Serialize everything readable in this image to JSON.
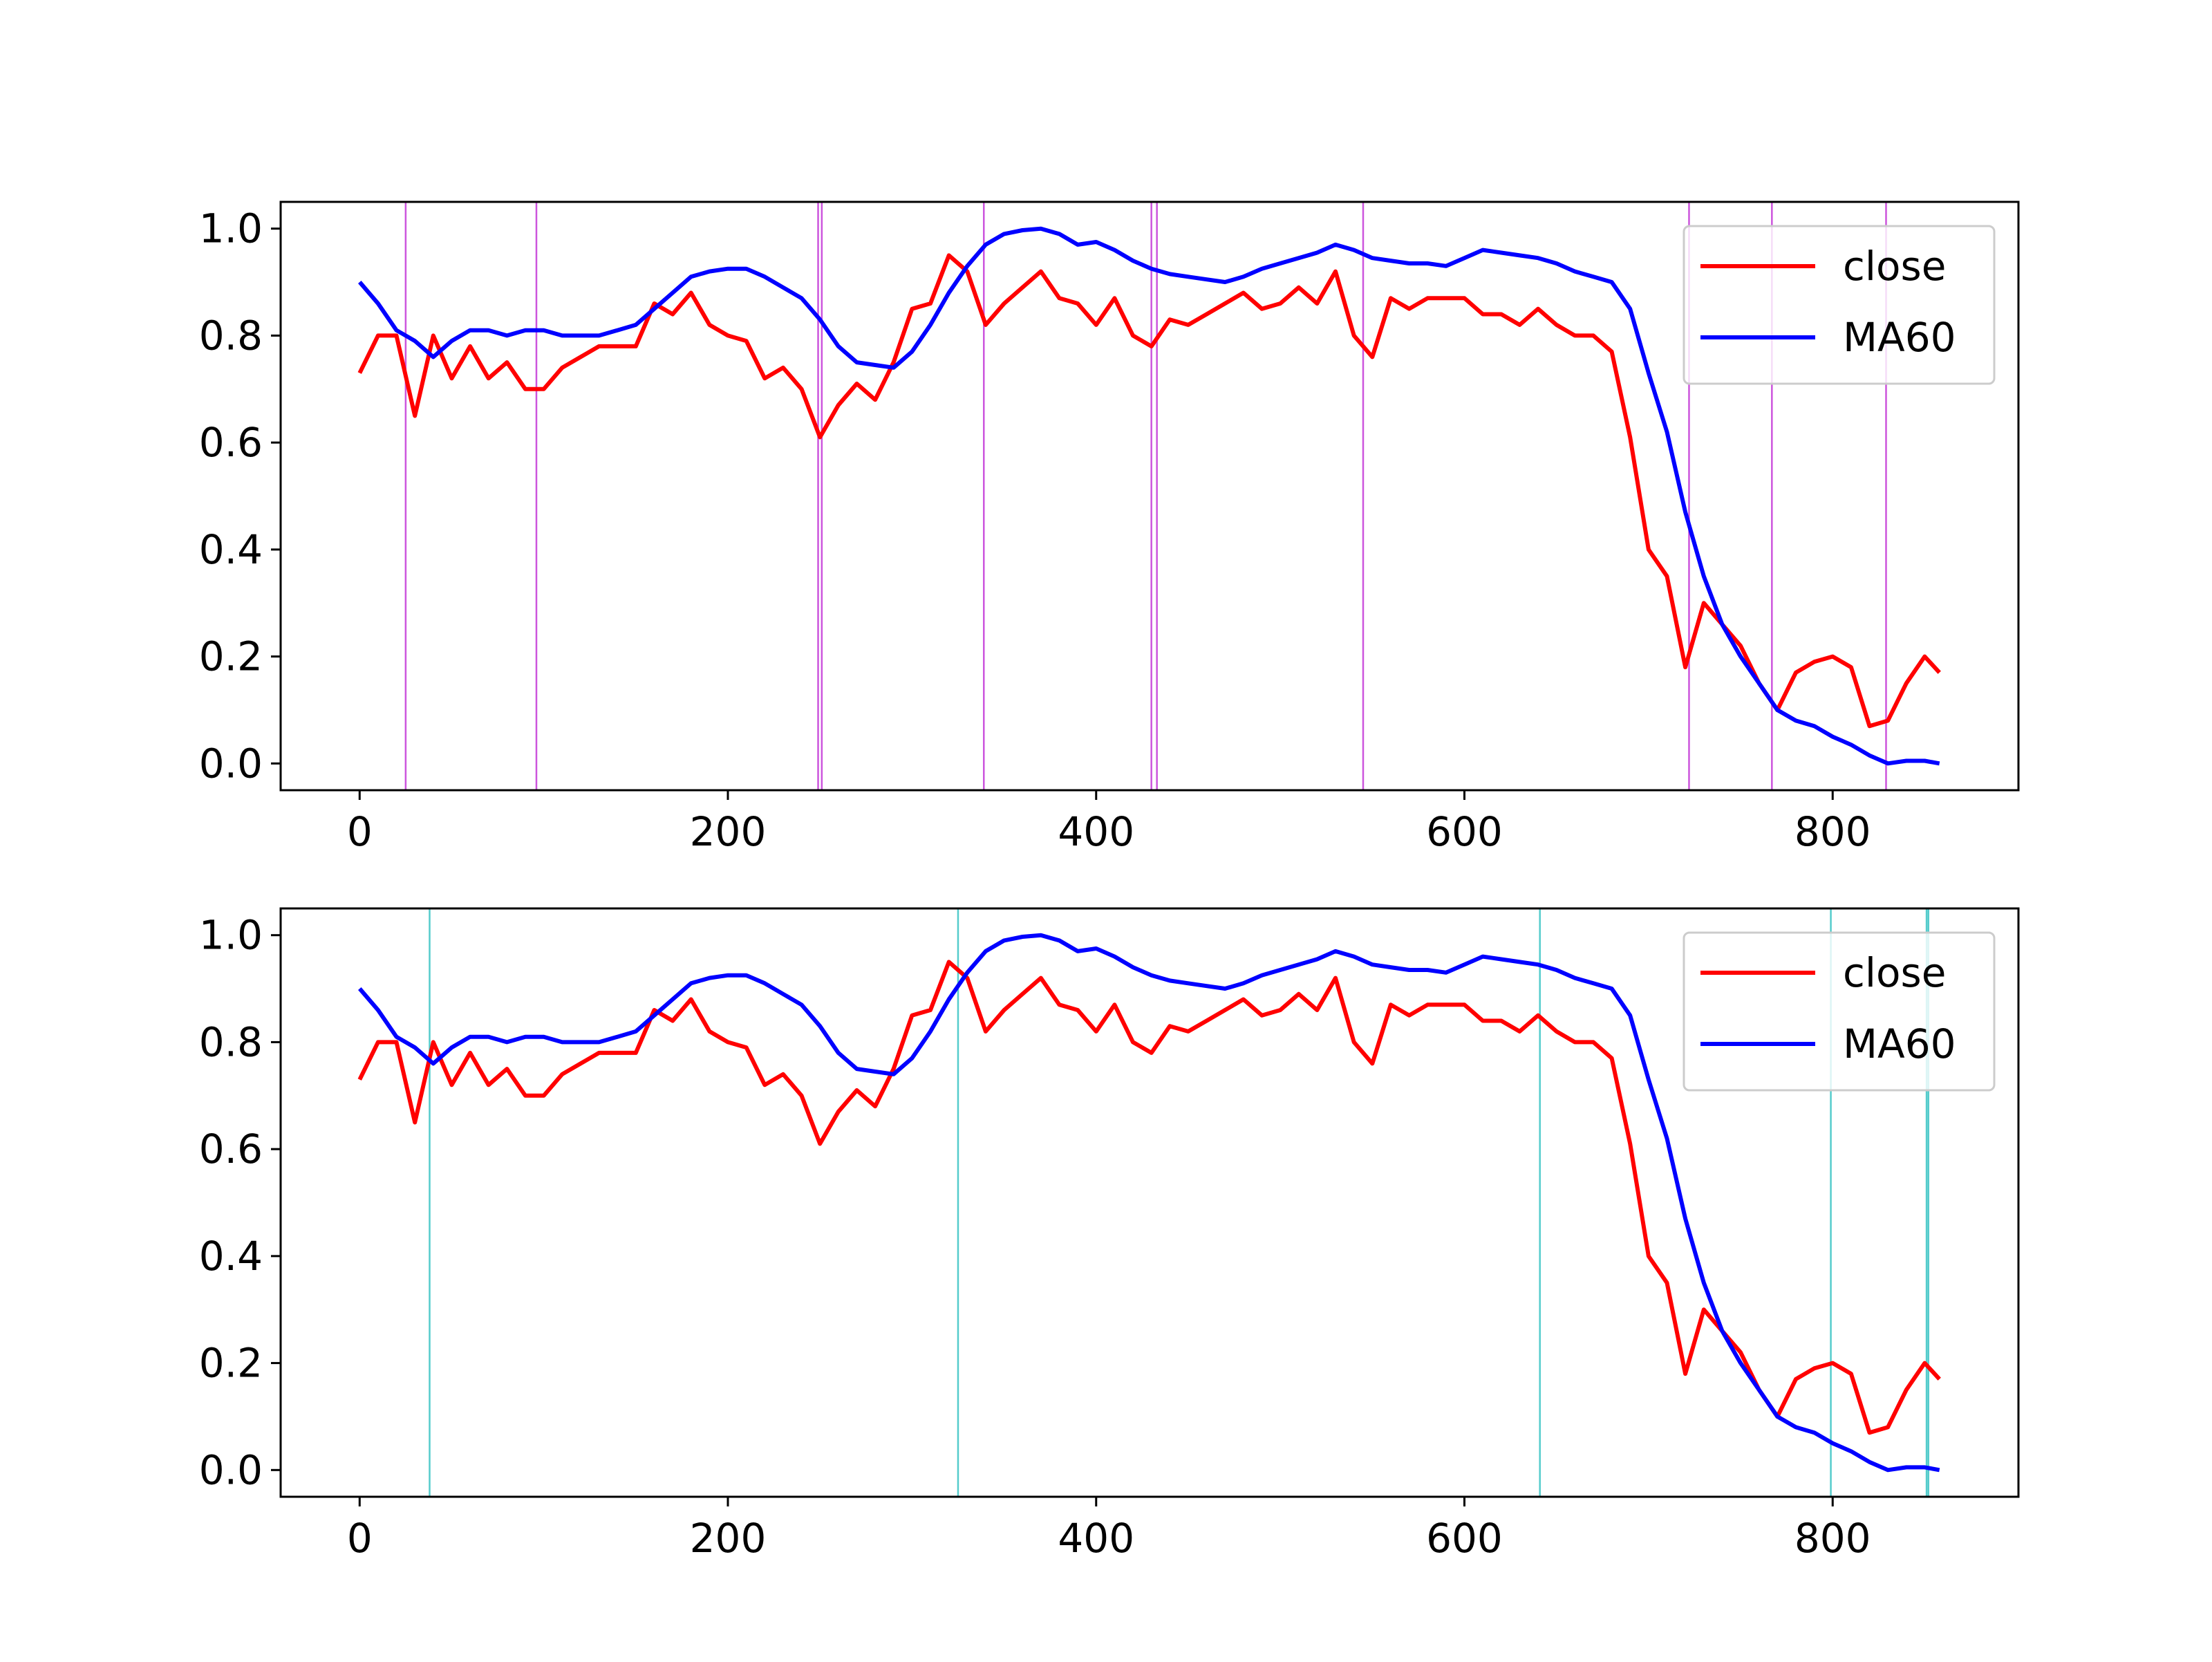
{
  "chart_data": [
    {
      "type": "line",
      "x": [
        0,
        10,
        20,
        30,
        40,
        50,
        60,
        70,
        80,
        90,
        100,
        110,
        120,
        130,
        140,
        150,
        160,
        170,
        180,
        190,
        200,
        210,
        220,
        230,
        240,
        250,
        260,
        270,
        280,
        290,
        300,
        310,
        320,
        330,
        340,
        350,
        360,
        370,
        380,
        390,
        400,
        410,
        420,
        430,
        440,
        450,
        460,
        470,
        480,
        490,
        500,
        510,
        520,
        530,
        540,
        550,
        560,
        570,
        580,
        590,
        600,
        610,
        620,
        630,
        640,
        650,
        660,
        670,
        680,
        690,
        700,
        710,
        720,
        730,
        740,
        750,
        760,
        770,
        780,
        790,
        800,
        810,
        820,
        830,
        840,
        850,
        858
      ],
      "series": [
        {
          "name": "close",
          "color": "red",
          "values": [
            0.73,
            0.8,
            0.8,
            0.65,
            0.8,
            0.72,
            0.78,
            0.72,
            0.75,
            0.7,
            0.7,
            0.74,
            0.76,
            0.78,
            0.78,
            0.78,
            0.86,
            0.84,
            0.88,
            0.82,
            0.8,
            0.79,
            0.72,
            0.74,
            0.7,
            0.61,
            0.67,
            0.71,
            0.68,
            0.75,
            0.85,
            0.86,
            0.95,
            0.92,
            0.82,
            0.86,
            0.89,
            0.92,
            0.87,
            0.86,
            0.82,
            0.87,
            0.8,
            0.78,
            0.83,
            0.82,
            0.84,
            0.86,
            0.88,
            0.85,
            0.86,
            0.89,
            0.86,
            0.92,
            0.8,
            0.76,
            0.87,
            0.85,
            0.87,
            0.87,
            0.87,
            0.84,
            0.84,
            0.82,
            0.85,
            0.82,
            0.8,
            0.8,
            0.77,
            0.61,
            0.4,
            0.35,
            0.18,
            0.3,
            0.26,
            0.22,
            0.15,
            0.1,
            0.17,
            0.19,
            0.2,
            0.18,
            0.07,
            0.08,
            0.15,
            0.2,
            0.17
          ]
        },
        {
          "name": "MA60",
          "color": "blue",
          "values": [
            0.9,
            0.86,
            0.81,
            0.79,
            0.76,
            0.79,
            0.81,
            0.81,
            0.8,
            0.81,
            0.81,
            0.8,
            0.8,
            0.8,
            0.81,
            0.82,
            0.85,
            0.88,
            0.91,
            0.92,
            0.925,
            0.925,
            0.91,
            0.89,
            0.87,
            0.83,
            0.78,
            0.75,
            0.745,
            0.74,
            0.77,
            0.82,
            0.88,
            0.93,
            0.97,
            0.99,
            0.997,
            1.0,
            0.99,
            0.97,
            0.975,
            0.96,
            0.94,
            0.925,
            0.915,
            0.91,
            0.905,
            0.9,
            0.91,
            0.925,
            0.935,
            0.945,
            0.955,
            0.97,
            0.96,
            0.945,
            0.94,
            0.935,
            0.935,
            0.93,
            0.945,
            0.96,
            0.955,
            0.95,
            0.945,
            0.935,
            0.92,
            0.91,
            0.9,
            0.85,
            0.73,
            0.62,
            0.47,
            0.35,
            0.26,
            0.2,
            0.15,
            0.1,
            0.08,
            0.07,
            0.05,
            0.035,
            0.015,
            0.0,
            0.005,
            0.005,
            0.0
          ]
        }
      ],
      "vlines": {
        "color": "#cc55dd",
        "x": [
          25,
          96,
          249,
          251,
          339,
          430,
          433,
          545,
          722,
          767,
          829
        ]
      },
      "xlim": [
        -42.9,
        900.9
      ],
      "ylim": [
        -0.05,
        1.05
      ],
      "xticks": [
        0,
        200,
        400,
        600,
        800
      ],
      "yticks": [
        {
          "value": 0,
          "label": "0.0"
        },
        0.2,
        0.4,
        0.6,
        0.8,
        {
          "value": 1,
          "label": "1.0"
        }
      ],
      "legend": "upper right"
    },
    {
      "type": "line",
      "x": [
        0,
        10,
        20,
        30,
        40,
        50,
        60,
        70,
        80,
        90,
        100,
        110,
        120,
        130,
        140,
        150,
        160,
        170,
        180,
        190,
        200,
        210,
        220,
        230,
        240,
        250,
        260,
        270,
        280,
        290,
        300,
        310,
        320,
        330,
        340,
        350,
        360,
        370,
        380,
        390,
        400,
        410,
        420,
        430,
        440,
        450,
        460,
        470,
        480,
        490,
        500,
        510,
        520,
        530,
        540,
        550,
        560,
        570,
        580,
        590,
        600,
        610,
        620,
        630,
        640,
        650,
        660,
        670,
        680,
        690,
        700,
        710,
        720,
        730,
        740,
        750,
        760,
        770,
        780,
        790,
        800,
        810,
        820,
        830,
        840,
        850,
        858
      ],
      "series": [
        {
          "name": "close",
          "color": "red",
          "values": [
            0.73,
            0.8,
            0.8,
            0.65,
            0.8,
            0.72,
            0.78,
            0.72,
            0.75,
            0.7,
            0.7,
            0.74,
            0.76,
            0.78,
            0.78,
            0.78,
            0.86,
            0.84,
            0.88,
            0.82,
            0.8,
            0.79,
            0.72,
            0.74,
            0.7,
            0.61,
            0.67,
            0.71,
            0.68,
            0.75,
            0.85,
            0.86,
            0.95,
            0.92,
            0.82,
            0.86,
            0.89,
            0.92,
            0.87,
            0.86,
            0.82,
            0.87,
            0.8,
            0.78,
            0.83,
            0.82,
            0.84,
            0.86,
            0.88,
            0.85,
            0.86,
            0.89,
            0.86,
            0.92,
            0.8,
            0.76,
            0.87,
            0.85,
            0.87,
            0.87,
            0.87,
            0.84,
            0.84,
            0.82,
            0.85,
            0.82,
            0.8,
            0.8,
            0.77,
            0.61,
            0.4,
            0.35,
            0.18,
            0.3,
            0.26,
            0.22,
            0.15,
            0.1,
            0.17,
            0.19,
            0.2,
            0.18,
            0.07,
            0.08,
            0.15,
            0.2,
            0.17
          ]
        },
        {
          "name": "MA60",
          "color": "blue",
          "values": [
            0.9,
            0.86,
            0.81,
            0.79,
            0.76,
            0.79,
            0.81,
            0.81,
            0.8,
            0.81,
            0.81,
            0.8,
            0.8,
            0.8,
            0.81,
            0.82,
            0.85,
            0.88,
            0.91,
            0.92,
            0.925,
            0.925,
            0.91,
            0.89,
            0.87,
            0.83,
            0.78,
            0.75,
            0.745,
            0.74,
            0.77,
            0.82,
            0.88,
            0.93,
            0.97,
            0.99,
            0.997,
            1.0,
            0.99,
            0.97,
            0.975,
            0.96,
            0.94,
            0.925,
            0.915,
            0.91,
            0.905,
            0.9,
            0.91,
            0.925,
            0.935,
            0.945,
            0.955,
            0.97,
            0.96,
            0.945,
            0.94,
            0.935,
            0.935,
            0.93,
            0.945,
            0.96,
            0.955,
            0.95,
            0.945,
            0.935,
            0.92,
            0.91,
            0.9,
            0.85,
            0.73,
            0.62,
            0.47,
            0.35,
            0.26,
            0.2,
            0.15,
            0.1,
            0.08,
            0.07,
            0.05,
            0.035,
            0.015,
            0.0,
            0.005,
            0.005,
            0.0
          ]
        }
      ],
      "vlines": {
        "color": "#55cccc",
        "x": [
          38,
          325,
          641,
          799,
          851,
          852
        ]
      },
      "xlim": [
        -42.9,
        900.9
      ],
      "ylim": [
        -0.05,
        1.05
      ],
      "xticks": [
        0,
        200,
        400,
        600,
        800
      ],
      "yticks": [
        {
          "value": 0,
          "label": "0.0"
        },
        0.2,
        0.4,
        0.6,
        0.8,
        {
          "value": 1,
          "label": "1.0"
        }
      ],
      "legend": "upper right"
    }
  ]
}
